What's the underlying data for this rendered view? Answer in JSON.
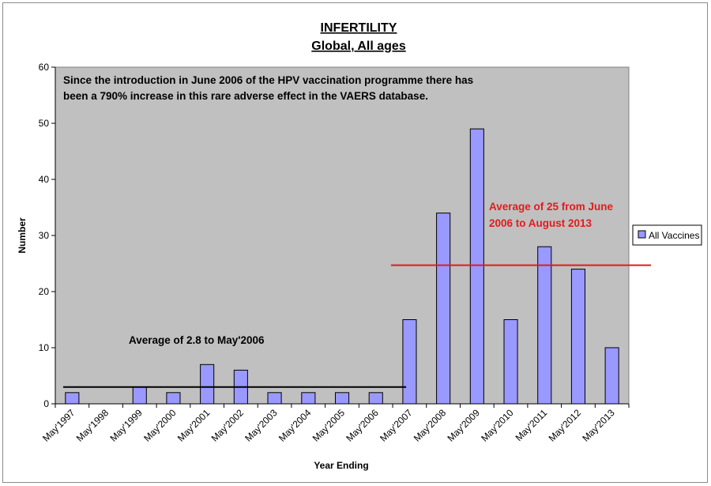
{
  "chart_data": {
    "type": "bar",
    "title": "INFERTILITY",
    "subtitle": "Global, All ages",
    "xlabel": "Year Ending",
    "ylabel": "Number",
    "ylim": [
      0,
      60
    ],
    "yticks": [
      0,
      10,
      20,
      30,
      40,
      50,
      60
    ],
    "grid": false,
    "legend_position": "right",
    "categories": [
      "May'1997",
      "May'1998",
      "May'1999",
      "May'2000",
      "May'2001",
      "May'2002",
      "May'2003",
      "May'2004",
      "May'2005",
      "May'2006",
      "May'2007",
      "May'2008",
      "May'2009",
      "May'2010",
      "May'2011",
      "May'2012",
      "May'2013"
    ],
    "series": [
      {
        "name": "All Vaccines",
        "values": [
          2,
          0,
          3,
          2,
          7,
          6,
          2,
          2,
          2,
          2,
          15,
          34,
          49,
          15,
          28,
          24,
          10
        ],
        "color": "#9999ff"
      }
    ],
    "plot_background": "#c0c0c0",
    "reference_lines": [
      {
        "value": 3,
        "from": "May'1997",
        "to": "May'2006",
        "color": "#000000",
        "label": "Average of 2.8 to May'2006"
      },
      {
        "value": 24.7,
        "from": "May'2007",
        "to": "May'2013",
        "color": "#e31b1b",
        "label_lines": [
          "Average of 25 from June",
          "2006 to August 2013"
        ]
      }
    ],
    "annotation_lines": [
      "Since the introduction in June 2006 of the HPV vaccination programme there has",
      "been a 790% increase in this rare adverse effect in the VAERS database."
    ]
  }
}
